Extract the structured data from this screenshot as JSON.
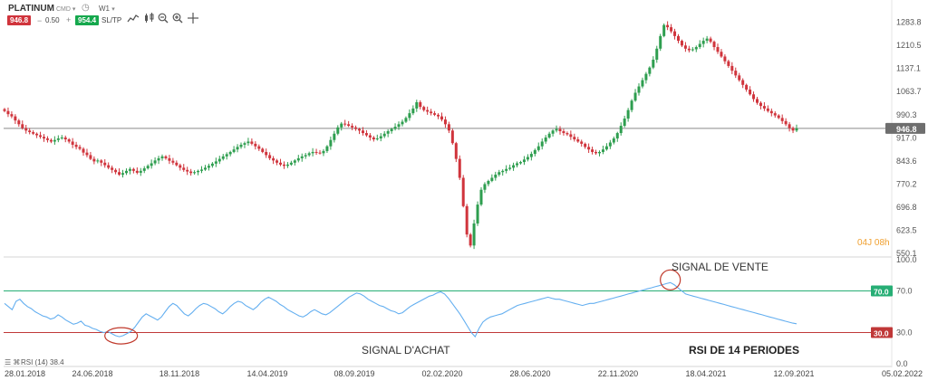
{
  "toolbar": {
    "symbol": "PLATINUM",
    "market": "CMD",
    "timeframe": "W1",
    "sell_price": "946.8",
    "quantity": "0.50",
    "buy_price": "954.4",
    "sltp_label": "SL/TP",
    "sell_color": "#d0343c",
    "buy_color": "#15a84d",
    "icons": [
      "chart-type-icon",
      "candle-type-icon",
      "zoom-out-icon",
      "zoom-in-icon",
      "crosshair-icon"
    ]
  },
  "chart_data": [
    {
      "type": "candlestick",
      "title": "",
      "price_ylim": [
        550.1,
        1320
      ],
      "price_ticks": [
        "1283.8",
        "1210.5",
        "1137.1",
        "1063.7",
        "990.3",
        "917.0",
        "843.6",
        "770.2",
        "696.8",
        "623.5",
        "550.1"
      ],
      "current_price": 946.8,
      "current_price_label": "946.8",
      "countdown": "04J 08h",
      "countdown_color": "#f0a030",
      "grid": false,
      "up_color": "#2e9e4f",
      "down_color": "#d0343c",
      "x_labels": [
        "28.01.2018",
        "24.06.2018",
        "18.11.2018",
        "14.04.2019",
        "08.09.2019",
        "02.02.2020",
        "28.06.2020",
        "22.11.2020",
        "18.04.2021",
        "12.09.2021",
        "05.02.2022"
      ],
      "close": [
        1002,
        992,
        985,
        972,
        960,
        948,
        940,
        935,
        930,
        925,
        920,
        915,
        910,
        905,
        910,
        915,
        918,
        912,
        905,
        895,
        888,
        882,
        870,
        862,
        850,
        842,
        845,
        838,
        830,
        822,
        815,
        808,
        800,
        805,
        812,
        818,
        812,
        806,
        812,
        820,
        828,
        836,
        845,
        852,
        858,
        852,
        844,
        838,
        830,
        822,
        815,
        810,
        805,
        808,
        812,
        816,
        822,
        828,
        835,
        842,
        850,
        858,
        865,
        872,
        880,
        888,
        895,
        900,
        905,
        898,
        890,
        882,
        872,
        862,
        852,
        845,
        838,
        832,
        828,
        832,
        838,
        845,
        852,
        858,
        862,
        868,
        872,
        870,
        868,
        875,
        890,
        910,
        930,
        950,
        962,
        960,
        955,
        950,
        945,
        940,
        932,
        925,
        918,
        912,
        915,
        922,
        930,
        938,
        945,
        952,
        960,
        968,
        980,
        995,
        1010,
        1030,
        1015,
        1005,
        1000,
        995,
        990,
        985,
        975,
        960,
        940,
        900,
        850,
        790,
        700,
        610,
        575,
        645,
        705,
        752,
        770,
        780,
        790,
        800,
        808,
        812,
        818,
        822,
        830,
        836,
        840,
        848,
        856,
        866,
        878,
        890,
        905,
        918,
        930,
        940,
        945,
        938,
        932,
        928,
        920,
        912,
        905,
        898,
        888,
        880,
        872,
        868,
        872,
        880,
        890,
        902,
        915,
        932,
        955,
        978,
        1005,
        1035,
        1060,
        1080,
        1100,
        1120,
        1140,
        1165,
        1200,
        1240,
        1275,
        1268,
        1255,
        1240,
        1225,
        1210,
        1200,
        1195,
        1198,
        1205,
        1215,
        1225,
        1232,
        1222,
        1205,
        1190,
        1175,
        1160,
        1145,
        1130,
        1115,
        1100,
        1085,
        1070,
        1055,
        1040,
        1028,
        1018,
        1010,
        1002,
        995,
        988,
        980,
        970,
        960,
        948,
        940,
        946.8
      ],
      "rsi": {
        "label": "RSI (14) 38.4",
        "ylim": [
          0,
          100
        ],
        "ticks": [
          "100.0",
          "70.0",
          "30.0",
          "0.0"
        ],
        "overbought": 70,
        "overbought_label": "70.0",
        "oversold": 30,
        "oversold_label": "30.0",
        "overbought_color": "#27ae75",
        "oversold_color": "#c03838",
        "line_color": "#64aff0",
        "values": [
          58,
          55,
          52,
          60,
          62,
          58,
          55,
          53,
          50,
          48,
          46,
          45,
          43,
          44,
          47,
          45,
          42,
          40,
          38,
          39,
          41,
          37,
          36,
          34,
          33,
          31,
          30,
          31,
          29,
          27,
          26,
          27,
          29,
          31,
          35,
          40,
          45,
          48,
          46,
          44,
          42,
          45,
          50,
          55,
          58,
          56,
          52,
          48,
          46,
          49,
          53,
          56,
          58,
          57,
          55,
          53,
          50,
          48,
          51,
          55,
          58,
          60,
          59,
          56,
          54,
          52,
          55,
          59,
          62,
          64,
          62,
          60,
          57,
          55,
          52,
          50,
          48,
          46,
          45,
          47,
          50,
          52,
          50,
          48,
          47,
          49,
          52,
          55,
          58,
          61,
          64,
          66,
          68,
          67,
          65,
          62,
          60,
          58,
          56,
          55,
          53,
          51,
          50,
          48,
          49,
          52,
          55,
          57,
          59,
          61,
          63,
          65,
          66,
          68,
          69,
          67,
          63,
          58,
          53,
          48,
          42,
          36,
          30,
          26,
          34,
          40,
          43,
          45,
          46,
          47,
          48,
          50,
          52,
          54,
          56,
          57,
          58,
          59,
          60,
          61,
          62,
          63,
          64,
          63,
          62,
          62,
          61,
          60,
          59,
          58,
          57,
          56,
          57,
          58,
          58,
          59,
          60,
          61,
          62,
          63,
          64,
          65,
          66,
          67,
          68,
          69,
          70,
          71,
          72,
          73,
          74,
          75,
          76,
          77,
          78,
          76,
          73,
          70,
          67,
          66,
          65,
          64,
          63,
          62,
          61,
          60,
          59,
          58,
          57,
          56,
          55,
          54,
          53,
          52,
          51,
          50,
          49,
          48,
          47,
          46,
          45,
          44,
          43,
          42,
          41,
          40,
          39,
          38.4
        ]
      },
      "annotations": {
        "sell_signal": "SIGNAL DE VENTE",
        "buy_signal": "SIGNAL D'ACHAT",
        "rsi_title": "RSI DE 14 PERIODES"
      }
    }
  ]
}
